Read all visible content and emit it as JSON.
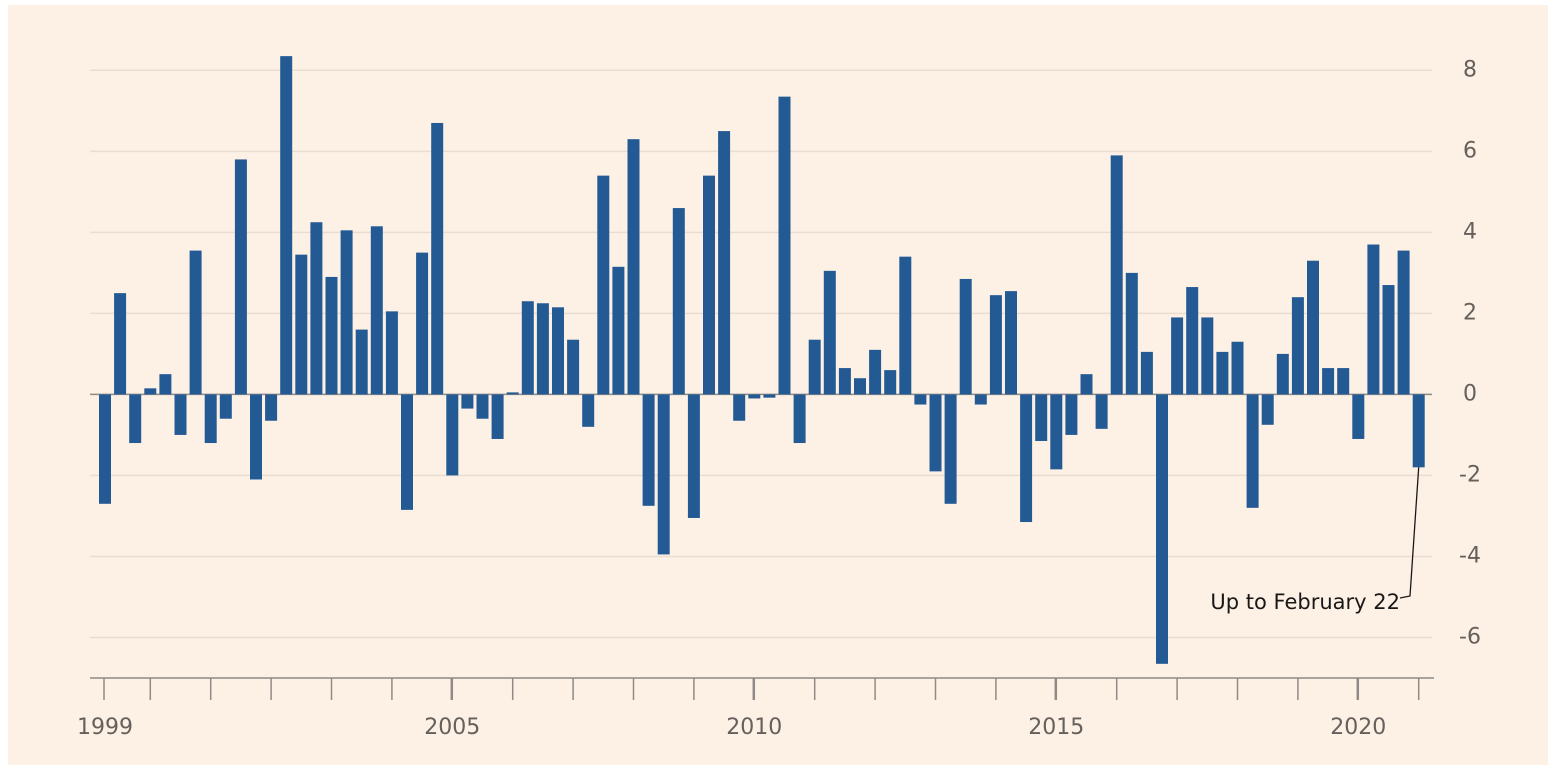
{
  "chart_data": {
    "type": "bar",
    "categories": [
      "1999",
      null,
      null,
      null,
      null,
      null,
      null,
      null,
      null,
      null,
      null,
      null,
      null,
      null,
      null,
      null,
      null,
      null,
      null,
      null,
      null,
      null,
      null,
      "2005",
      null,
      null,
      null,
      null,
      null,
      null,
      null,
      null,
      null,
      null,
      null,
      null,
      null,
      null,
      null,
      null,
      null,
      null,
      null,
      "2010",
      null,
      null,
      null,
      null,
      null,
      null,
      null,
      null,
      null,
      null,
      null,
      null,
      null,
      null,
      null,
      null,
      null,
      null,
      null,
      "2015",
      null,
      null,
      null,
      null,
      null,
      null,
      null,
      null,
      null,
      null,
      null,
      null,
      null,
      null,
      null,
      null,
      null,
      null,
      null,
      "2020",
      null,
      null,
      null,
      null
    ],
    "values": [
      -2.7,
      2.5,
      -1.2,
      0.15,
      0.5,
      -1.0,
      3.55,
      -1.2,
      -0.6,
      5.8,
      -2.1,
      -0.65,
      8.35,
      3.45,
      4.25,
      2.9,
      4.05,
      1.6,
      4.15,
      2.05,
      -2.85,
      3.5,
      6.7,
      -2.0,
      -0.35,
      -0.6,
      -1.1,
      0.05,
      2.3,
      2.25,
      2.15,
      1.35,
      -0.8,
      5.4,
      3.15,
      6.3,
      -2.75,
      -3.95,
      4.6,
      -3.05,
      5.4,
      6.5,
      -0.65,
      -0.1,
      -0.08,
      7.35,
      -1.2,
      1.35,
      3.05,
      0.65,
      0.4,
      1.1,
      0.6,
      3.4,
      -0.25,
      -1.9,
      -2.7,
      2.85,
      -0.25,
      2.45,
      2.55,
      -3.15,
      -1.15,
      -1.85,
      -1.0,
      0.5,
      -0.85,
      5.9,
      3.0,
      1.05,
      -6.65,
      1.9,
      2.65,
      1.9,
      1.05,
      1.3,
      -2.8,
      -0.75,
      1.0,
      2.4,
      3.3,
      0.65,
      0.65,
      -1.1,
      3.7,
      2.7,
      3.55,
      -1.8
    ],
    "color": "#245a94",
    "ylim": [
      -7,
      8.6
    ],
    "yticks": [
      -6,
      -4,
      -2,
      0,
      2,
      4,
      6,
      8
    ],
    "grid": true,
    "annotation": "Up to February 22"
  }
}
